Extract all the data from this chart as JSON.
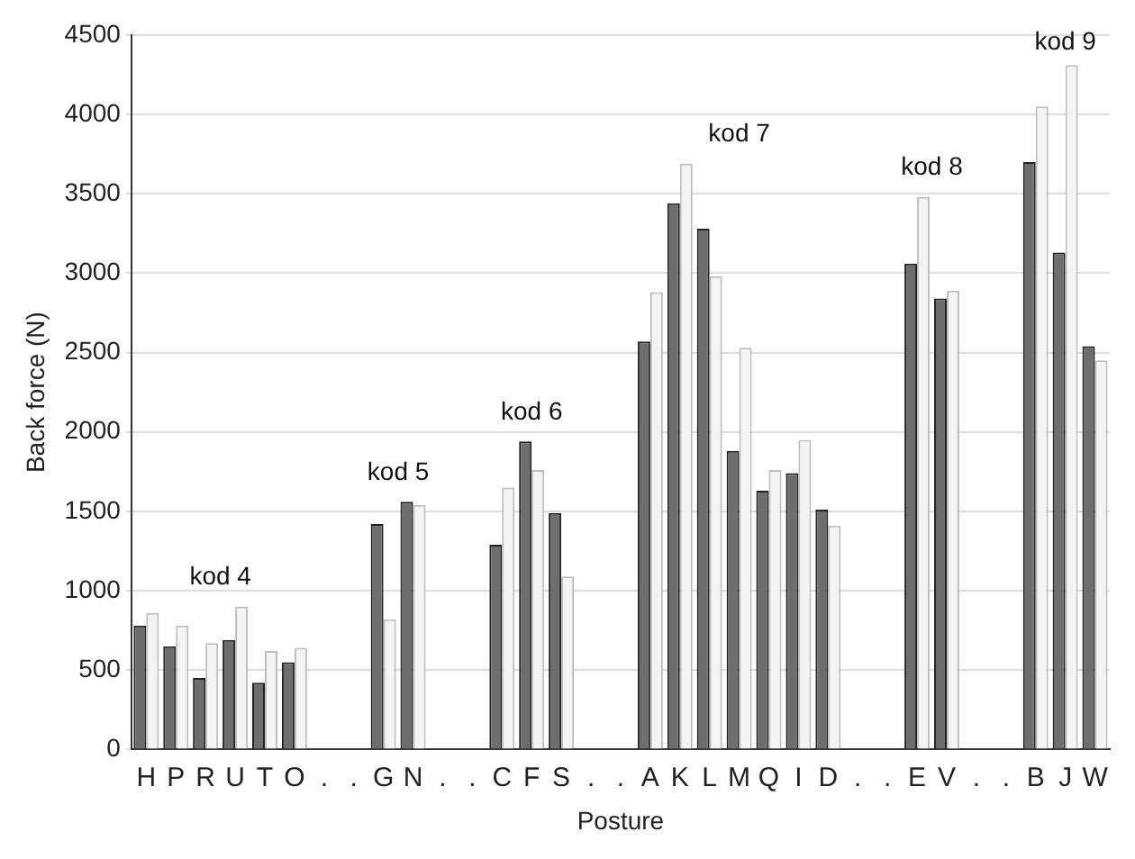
{
  "chart_data": {
    "type": "bar",
    "xlabel": "Posture",
    "ylabel": "Back force (N)",
    "categories": [
      "H",
      "P",
      "R",
      "U",
      "T",
      "O",
      ".",
      ".",
      "G",
      "N",
      ".",
      ".",
      "C",
      "F",
      "S",
      ".",
      ".",
      "A",
      "K",
      "L",
      "M",
      "Q",
      "I",
      "D",
      ".",
      ".",
      "E",
      "V",
      ".",
      ".",
      "B",
      "J",
      "W"
    ],
    "series": [
      {
        "color": "#6e6e6e",
        "values": [
          780,
          650,
          450,
          690,
          420,
          550,
          null,
          null,
          1420,
          1560,
          null,
          null,
          1290,
          1940,
          1490,
          null,
          null,
          2570,
          3440,
          3280,
          1880,
          1630,
          1740,
          1510,
          null,
          null,
          3060,
          2840,
          null,
          null,
          3700,
          3130,
          2540
        ]
      },
      {
        "color": "#f4f4f4",
        "values": [
          860,
          780,
          670,
          900,
          620,
          640,
          null,
          null,
          820,
          1540,
          null,
          null,
          1650,
          1760,
          1090,
          null,
          null,
          2880,
          3690,
          2980,
          2530,
          1760,
          1950,
          1410,
          null,
          null,
          3480,
          2890,
          null,
          null,
          4050,
          4310,
          2450
        ]
      }
    ],
    "ylim": [
      0,
      4500
    ],
    "yticks": [
      0,
      500,
      1000,
      1500,
      2000,
      2500,
      3000,
      3500,
      4000,
      4500
    ],
    "grid": "y",
    "annotations": [
      "kod 4",
      "kod 5",
      "kod 6",
      "kod 7",
      "kod 8",
      "kod 9"
    ]
  }
}
